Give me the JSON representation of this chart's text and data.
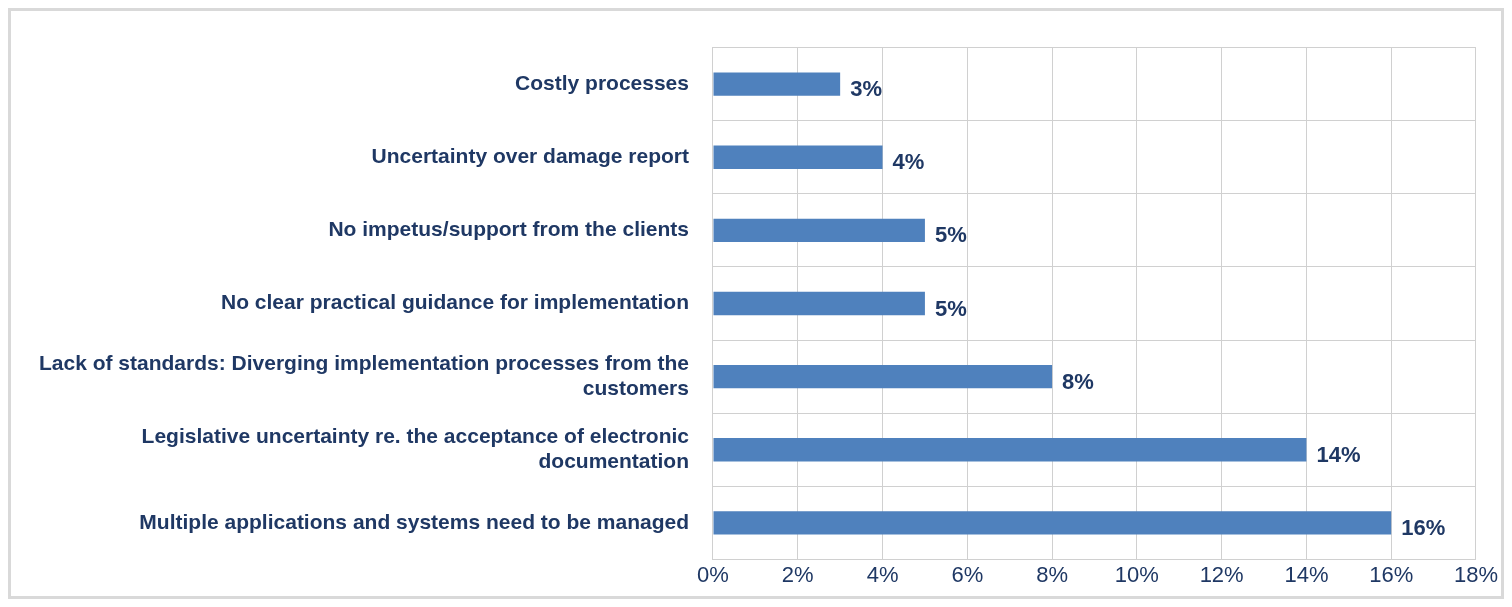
{
  "chart_data": {
    "type": "bar",
    "orientation": "horizontal",
    "categories": [
      "Costly processes",
      "Uncertainty over damage report",
      "No impetus/support from the clients",
      "No clear practical guidance for implementation",
      "Lack of standards: Diverging implementation processes from the customers",
      "Legislative uncertainty re. the acceptance of electronic documentation",
      "Multiple applications and systems need to be managed"
    ],
    "values": [
      3,
      4,
      5,
      5,
      8,
      14,
      16
    ],
    "value_labels": [
      "3%",
      "4%",
      "5%",
      "5%",
      "8%",
      "14%",
      "16%"
    ],
    "color": "#4f81bd",
    "xlim": [
      0,
      18
    ],
    "xticks": [
      {
        "value": 0,
        "label": "0%"
      },
      {
        "value": 2,
        "label": "2%"
      },
      {
        "value": 4,
        "label": "4%"
      },
      {
        "value": 6,
        "label": "6%"
      },
      {
        "value": 8,
        "label": "8%"
      },
      {
        "value": 10,
        "label": "10%"
      },
      {
        "value": 12,
        "label": "12%"
      },
      {
        "value": 14,
        "label": "14%"
      },
      {
        "value": 16,
        "label": "16%"
      },
      {
        "value": 18,
        "label": "18%"
      }
    ],
    "grid": true
  }
}
